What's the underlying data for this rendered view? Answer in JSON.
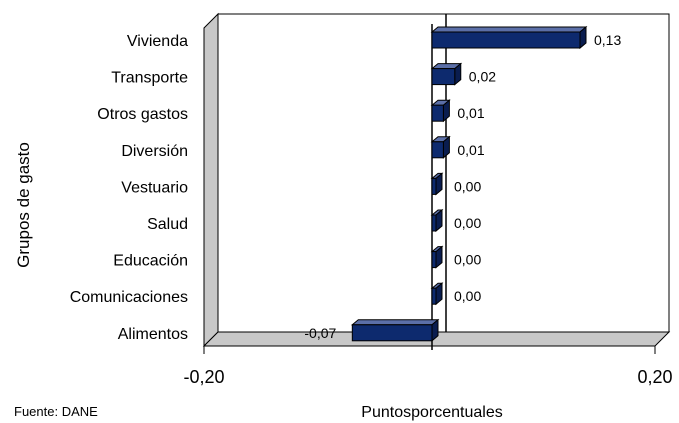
{
  "chart_data": {
    "type": "bar",
    "orientation": "horizontal",
    "categories": [
      "Vivienda",
      "Transporte",
      "Otros gastos",
      "Diversión",
      "Vestuario",
      "Salud",
      "Educación",
      "Comunicaciones",
      "Alimentos"
    ],
    "values": [
      0.13,
      0.02,
      0.01,
      0.01,
      0.0,
      0.0,
      0.0,
      0.0,
      -0.07
    ],
    "data_labels": [
      "0,13",
      "0,02",
      "0,01",
      "0,01",
      "0,00",
      "0,00",
      "0,00",
      "0,00",
      "-0,07"
    ],
    "xlabel": "Puntosporcentuales",
    "ylabel": "Grupos de gasto",
    "xlim": [
      -0.2,
      0.2
    ],
    "x_ticks": [
      "-0,20",
      "0,20"
    ],
    "bar_color": "#0d2a6e",
    "grid": false,
    "legend": "none",
    "style": "3d"
  },
  "source_text": "Fuente: DANE"
}
